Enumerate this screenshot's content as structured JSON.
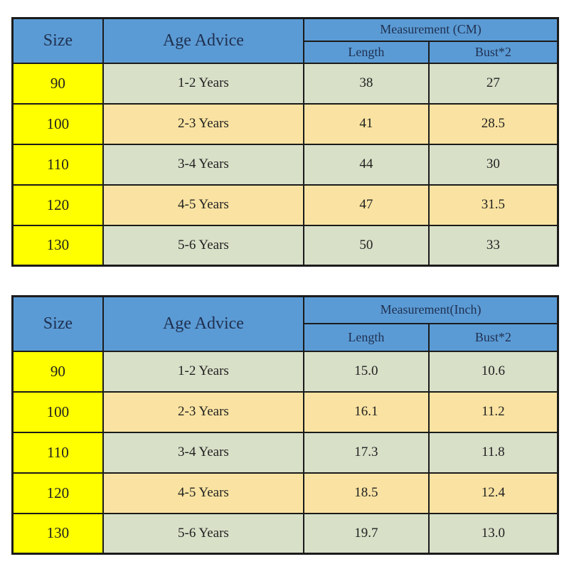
{
  "colors": {
    "header_blue": "#5b9bd5",
    "size_yellow": "#ffff00",
    "row_green": "#d8e0c8",
    "row_tan": "#fae3a2",
    "border": "#1b1b1b",
    "header_text": "#1f3050"
  },
  "tables": [
    {
      "unit": "cm",
      "headers": {
        "size": "Size",
        "age": "Age Advice",
        "measurement": "Measurement (CM)",
        "length": "Length",
        "bust": "Bust*2"
      },
      "rows": [
        {
          "size": "90",
          "age": "1-2 Years",
          "length": "38",
          "bust": "27"
        },
        {
          "size": "100",
          "age": "2-3 Years",
          "length": "41",
          "bust": "28.5"
        },
        {
          "size": "110",
          "age": "3-4 Years",
          "length": "44",
          "bust": "30"
        },
        {
          "size": "120",
          "age": "4-5 Years",
          "length": "47",
          "bust": "31.5"
        },
        {
          "size": "130",
          "age": "5-6 Years",
          "length": "50",
          "bust": "33"
        }
      ]
    },
    {
      "unit": "inch",
      "headers": {
        "size": "Size",
        "age": "Age Advice",
        "measurement": "Measurement(Inch)",
        "length": "Length",
        "bust": "Bust*2"
      },
      "rows": [
        {
          "size": "90",
          "age": "1-2 Years",
          "length": "15.0",
          "bust": "10.6"
        },
        {
          "size": "100",
          "age": "2-3 Years",
          "length": "16.1",
          "bust": "11.2"
        },
        {
          "size": "110",
          "age": "3-4 Years",
          "length": "17.3",
          "bust": "11.8"
        },
        {
          "size": "120",
          "age": "4-5 Years",
          "length": "18.5",
          "bust": "12.4"
        },
        {
          "size": "130",
          "age": "5-6 Years",
          "length": "19.7",
          "bust": "13.0"
        }
      ]
    }
  ]
}
